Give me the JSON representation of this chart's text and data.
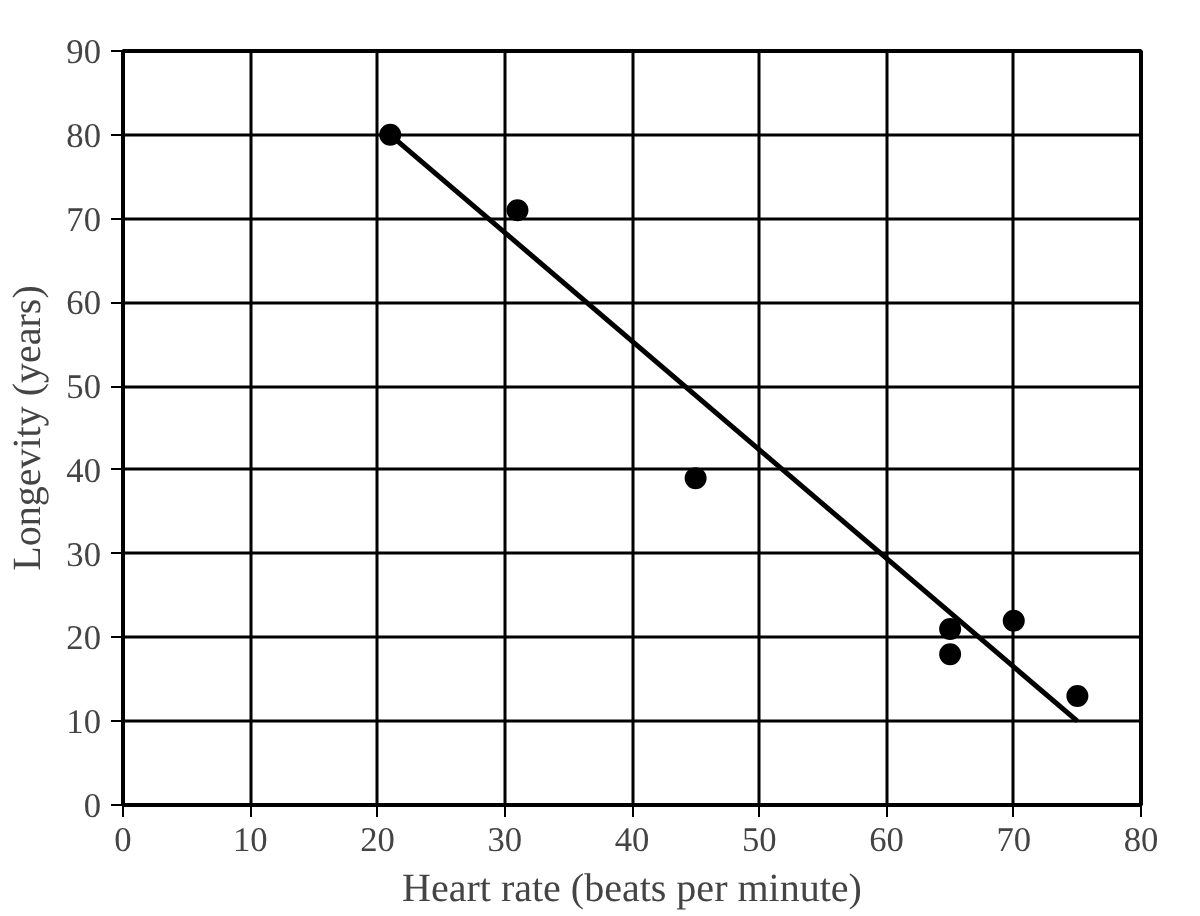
{
  "chart_data": {
    "type": "scatter",
    "xlabel": "Heart rate (beats per minute)",
    "ylabel": "Longevity (years)",
    "xlim": [
      0,
      80
    ],
    "ylim": [
      0,
      90
    ],
    "xticks": [
      0,
      10,
      20,
      30,
      40,
      50,
      60,
      70,
      80
    ],
    "yticks": [
      0,
      10,
      20,
      30,
      40,
      50,
      60,
      70,
      80,
      90
    ],
    "grid": true,
    "marker": "circle",
    "series": [
      {
        "color": "#000000",
        "x": [
          21,
          31,
          45,
          65,
          65,
          70,
          75
        ],
        "values": [
          80,
          71,
          39,
          21,
          18,
          22,
          13
        ]
      },
      {
        "type": "line",
        "color": "#000000",
        "x": [
          21,
          75
        ],
        "values": [
          80,
          10
        ],
        "marker": "none",
        "line_style": "solid"
      }
    ]
  }
}
